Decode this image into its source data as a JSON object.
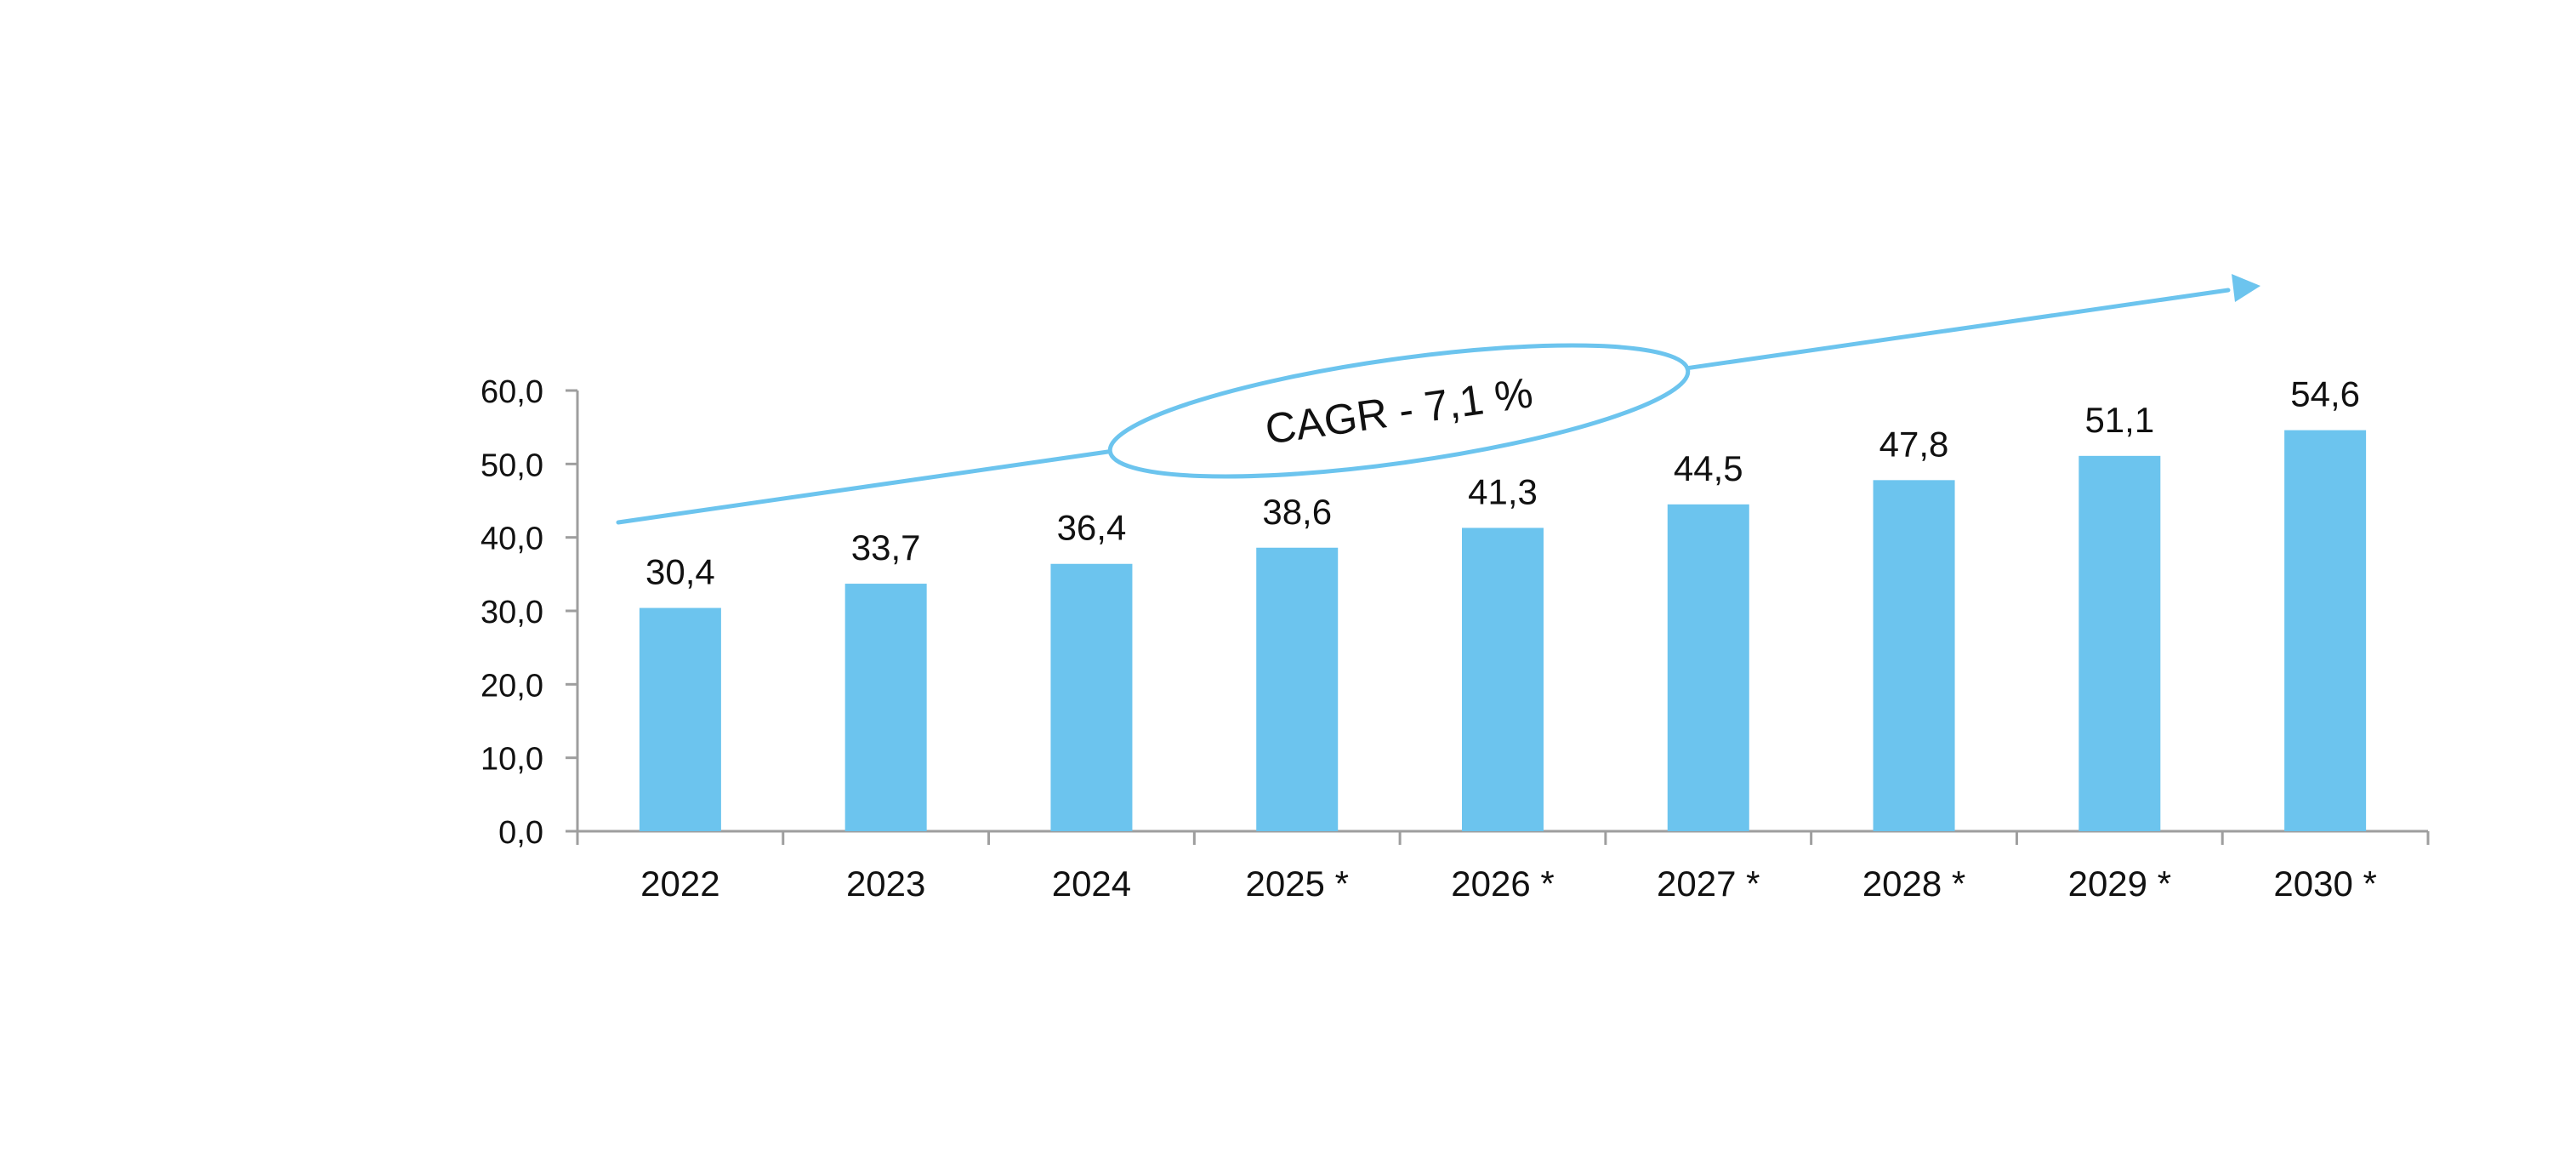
{
  "colors": {
    "bar": "#6CC4EE",
    "accent": "#6CC4EE",
    "axis": "#9E9E9E",
    "text": "#111111",
    "background": "#FFFFFF"
  },
  "annotation": {
    "label": "CAGR - 7,1 %",
    "shape": "ellipse-with-arrow"
  },
  "chart_data": {
    "type": "bar",
    "categories": [
      "2022",
      "2023",
      "2024",
      "2025 *",
      "2026 *",
      "2027 *",
      "2028 *",
      "2029 *",
      "2030 *"
    ],
    "values": [
      30.4,
      33.7,
      36.4,
      38.6,
      41.3,
      44.5,
      47.8,
      51.1,
      54.6
    ],
    "value_labels": [
      "30,4",
      "33,7",
      "36,4",
      "38,6",
      "41,3",
      "44,5",
      "47,8",
      "51,1",
      "54,6"
    ],
    "yticks": [
      0,
      10,
      20,
      30,
      40,
      50,
      60
    ],
    "ytick_labels": [
      "0,0",
      "10,0",
      "20,0",
      "30,0",
      "40,0",
      "50,0",
      "60,0"
    ],
    "ylim": [
      0,
      60
    ],
    "title": "",
    "xlabel": "",
    "ylabel": "",
    "grid": false,
    "legend": "none"
  }
}
